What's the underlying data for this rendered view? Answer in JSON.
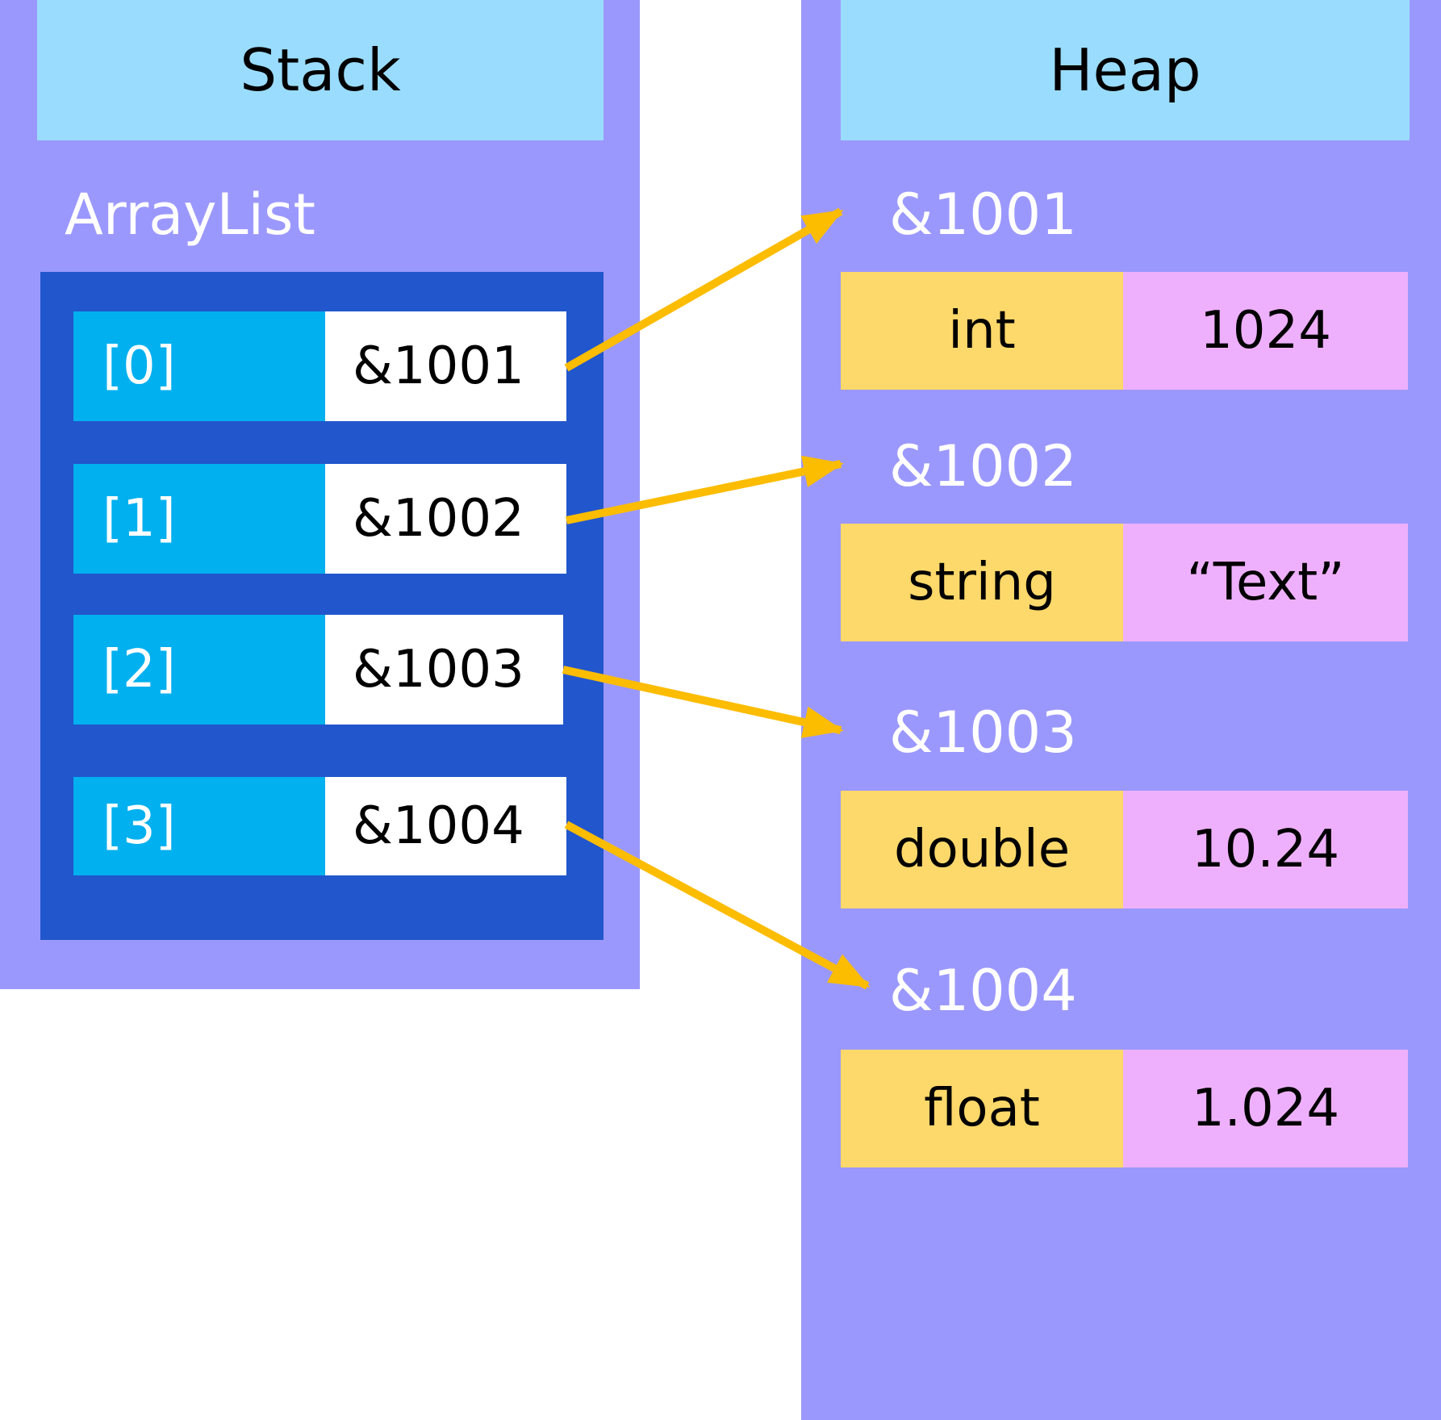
{
  "stack": {
    "title": "Stack",
    "arraylist_label": "ArrayList",
    "rows": [
      {
        "index": "[0]",
        "ref": "&1001"
      },
      {
        "index": "[1]",
        "ref": "&1002"
      },
      {
        "index": "[2]",
        "ref": "&1003"
      },
      {
        "index": "[3]",
        "ref": "&1004"
      }
    ]
  },
  "heap": {
    "title": "Heap",
    "objects": [
      {
        "address": "&1001",
        "type": "int",
        "value": "1024"
      },
      {
        "address": "&1002",
        "type": "string",
        "value": "“Text”"
      },
      {
        "address": "&1003",
        "type": "double",
        "value": "10.24"
      },
      {
        "address": "&1004",
        "type": "float",
        "value": "1.024"
      }
    ]
  },
  "colors": {
    "panel": "#9b98fd",
    "header": "#9adcfd",
    "arraylist_box": "#2256cc",
    "index_cell": "#00b0ef",
    "type_cell": "#fdd86a",
    "value_cell": "#eeb0fc",
    "arrow": "#fcbc00"
  }
}
